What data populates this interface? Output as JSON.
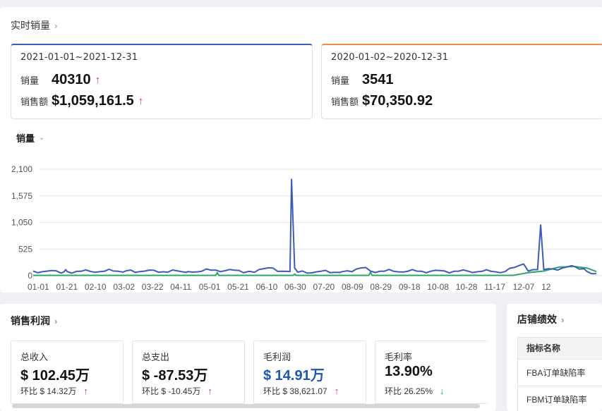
{
  "realtime": {
    "title": "实时销量",
    "current": {
      "range": "2021-01-01~2021-12-31",
      "qty_label": "销量",
      "qty_value": "40310",
      "sales_label": "销售额",
      "sales_value": "$1,059,161.5"
    },
    "previous": {
      "range": "2020-01-02~2020-12-31",
      "qty_label": "销量",
      "qty_value": "3541",
      "sales_label": "销售额",
      "sales_value": "$70,350.92"
    },
    "metric_select": "销量"
  },
  "colors": {
    "current": "#3d5bb8",
    "previous": "#2ea56a",
    "up": "#d93a3a",
    "down": "#2e9e5c",
    "accent_blue": "#1c57b5"
  },
  "chart_data": {
    "type": "line",
    "title": "销量",
    "y_ticks": [
      "2,100",
      "1,575",
      "1,050",
      "525",
      "0"
    ],
    "ylim": [
      0,
      2100
    ],
    "x_labels": [
      "01-01",
      "01-21",
      "02-10",
      "03-02",
      "03-22",
      "04-11",
      "05-01",
      "05-21",
      "06-10",
      "06-30",
      "07-20",
      "08-09",
      "08-29",
      "09-18",
      "10-08",
      "10-28",
      "11-17",
      "12-07",
      "12"
    ],
    "series": [
      {
        "name": "2021-01-01~2021-12-31",
        "values": [
          {
            "day": 0,
            "v": 90
          },
          {
            "day": 20,
            "v": 75
          },
          {
            "day": 21,
            "v": 120
          },
          {
            "day": 22,
            "v": 80
          },
          {
            "day": 60,
            "v": 95
          },
          {
            "day": 100,
            "v": 80
          },
          {
            "day": 118,
            "v": 110
          },
          {
            "day": 140,
            "v": 85
          },
          {
            "day": 155,
            "v": 150
          },
          {
            "day": 158,
            "v": 85
          },
          {
            "day": 166,
            "v": 80
          },
          {
            "day": 167,
            "v": 1900
          },
          {
            "day": 169,
            "v": 150
          },
          {
            "day": 171,
            "v": 70
          },
          {
            "day": 200,
            "v": 80
          },
          {
            "day": 215,
            "v": 160
          },
          {
            "day": 218,
            "v": 90
          },
          {
            "day": 290,
            "v": 85
          },
          {
            "day": 305,
            "v": 80
          },
          {
            "day": 317,
            "v": 230
          },
          {
            "day": 320,
            "v": 90
          },
          {
            "day": 326,
            "v": 120
          },
          {
            "day": 328,
            "v": 1000
          },
          {
            "day": 330,
            "v": 120
          },
          {
            "day": 342,
            "v": 150
          },
          {
            "day": 350,
            "v": 180
          },
          {
            "day": 358,
            "v": 80
          },
          {
            "day": 364,
            "v": 40
          }
        ]
      },
      {
        "name": "2020-01-02~2020-12-31",
        "values": [
          {
            "day": 0,
            "v": 5
          },
          {
            "day": 118,
            "v": 5
          },
          {
            "day": 119,
            "v": 60
          },
          {
            "day": 120,
            "v": 5
          },
          {
            "day": 168,
            "v": 5
          },
          {
            "day": 169,
            "v": 30
          },
          {
            "day": 170,
            "v": 5
          },
          {
            "day": 217,
            "v": 5
          },
          {
            "day": 218,
            "v": 70
          },
          {
            "day": 219,
            "v": 5
          },
          {
            "day": 310,
            "v": 5
          },
          {
            "day": 320,
            "v": 60
          },
          {
            "day": 330,
            "v": 90
          },
          {
            "day": 340,
            "v": 170
          },
          {
            "day": 350,
            "v": 180
          },
          {
            "day": 358,
            "v": 150
          },
          {
            "day": 364,
            "v": 80
          }
        ]
      }
    ]
  },
  "profit": {
    "title": "销售利润",
    "cards": [
      {
        "label": "总收入",
        "value": "$ 102.45万",
        "sub": "环比 $ 14.32万",
        "trend": "up"
      },
      {
        "label": "总支出",
        "value": "$ -87.53万",
        "sub": "环比 $ -10.45万",
        "trend": "up"
      },
      {
        "label": "毛利润",
        "value": "$ 14.91万",
        "sub": "环比 $ 38,621.07",
        "trend": "up"
      },
      {
        "label": "毛利率",
        "value": "13.90%",
        "sub": "环比 26.25%",
        "trend": "down"
      }
    ]
  },
  "shop": {
    "title": "店铺绩效",
    "table_header": "指标名称",
    "rows": [
      "FBA订单缺陷率",
      "FBM订单缺陷率"
    ]
  },
  "icons": {
    "chevron": "chevron-right-icon",
    "dropdown": "chevron-down-icon",
    "up": "arrow-up-icon",
    "down": "arrow-down-icon"
  }
}
